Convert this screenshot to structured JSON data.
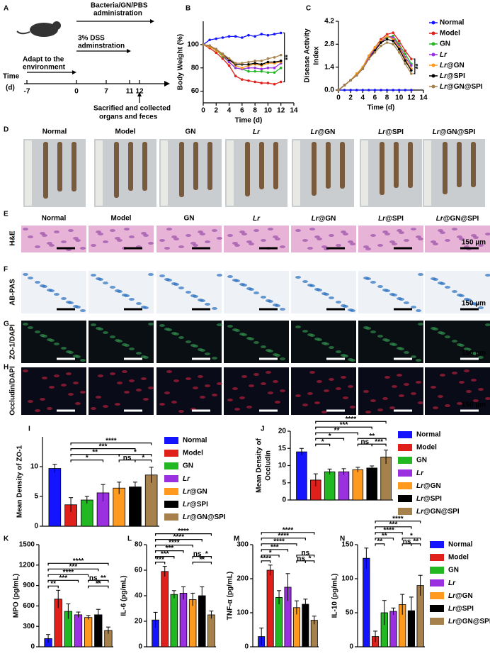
{
  "panel_labels": [
    "A",
    "B",
    "C",
    "D",
    "E",
    "F",
    "G",
    "H",
    "I",
    "J",
    "K",
    "L",
    "M",
    "N"
  ],
  "timeline": {
    "time": "Time",
    "unit": "(d)",
    "ticks": [
      "-7",
      "0",
      "7",
      "11",
      "12"
    ],
    "adapt": [
      "Adapt to the",
      "environment"
    ],
    "dss": [
      "3% DSS",
      "adminstration"
    ],
    "bacteria": [
      "Bacteria/GN/PBS",
      "administration"
    ],
    "sacrifice": [
      "Sacrified and collected",
      "organs and feces"
    ]
  },
  "histology": {
    "groups": [
      "Normal",
      "Model",
      "GN",
      "Lr",
      "Lr@GN",
      "Lr@SPI",
      "Lr@GN@SPI"
    ],
    "rows": [
      "H&E",
      "AB-PAS",
      "ZO-1/DAPI",
      "Occludin/DAPI"
    ],
    "scale_bar": "150 µm"
  },
  "chart_data": [
    {
      "type": "line",
      "xlabel": "Time (d)",
      "ylabel": [
        "Body Weight (%)"
      ],
      "annotation": "**",
      "x": [
        0,
        1,
        2,
        3,
        4,
        5,
        6,
        7,
        8,
        9,
        10,
        11,
        12
      ],
      "xlim": [
        0,
        14
      ],
      "xticks": [
        0,
        2,
        4,
        6,
        8,
        10,
        12,
        14
      ],
      "ylim": [
        50,
        120
      ],
      "yticks": [
        60,
        80,
        100
      ],
      "series": [
        {
          "name": "Normal",
          "color": "#1414ff",
          "values": [
            100,
            104,
            105,
            106,
            107,
            107,
            106,
            108,
            107,
            109,
            108,
            109,
            110
          ]
        },
        {
          "name": "Model",
          "color": "#e0201b",
          "values": [
            100,
            97,
            93,
            88,
            82,
            73,
            70,
            69,
            68,
            67,
            67,
            66,
            68
          ]
        },
        {
          "name": "GN",
          "color": "#22b822",
          "values": [
            100,
            98,
            95,
            90,
            85,
            80,
            79,
            77,
            77,
            77,
            76,
            76,
            80
          ]
        },
        {
          "name": "Lr",
          "color": "#9b30e0",
          "values": [
            100,
            99,
            96,
            91,
            85,
            80,
            79,
            80,
            80,
            79,
            80,
            80,
            84
          ]
        },
        {
          "name": "Lr@GN",
          "color": "#ff9a1f",
          "values": [
            100,
            98,
            95,
            91,
            87,
            82,
            80,
            82,
            83,
            82,
            84,
            84,
            85
          ]
        },
        {
          "name": "Lr@SPI",
          "color": "#000000",
          "values": [
            100,
            99,
            96,
            92,
            87,
            83,
            83,
            83,
            84,
            83,
            85,
            85,
            86
          ]
        },
        {
          "name": "Lr@GN@SPI",
          "color": "#a6814c",
          "values": [
            100,
            99,
            96,
            92,
            88,
            84,
            84,
            85,
            86,
            86,
            88,
            89,
            91
          ]
        }
      ]
    },
    {
      "type": "line",
      "xlabel": "Time (d)",
      "ylabel": [
        "Disease Activity",
        "Index"
      ],
      "annotation": "**",
      "legend": "right",
      "x": [
        0,
        1,
        2,
        3,
        4,
        5,
        6,
        7,
        8,
        9,
        10,
        11,
        12
      ],
      "xlim": [
        0,
        14
      ],
      "xticks": [
        0,
        2,
        4,
        6,
        8,
        10,
        12,
        14
      ],
      "ylim": [
        0,
        4.2
      ],
      "yticks": [
        {
          "value": 0,
          "label": "0.0"
        },
        1.4,
        2.8,
        4.2
      ],
      "series": [
        {
          "name": "Normal",
          "color": "#1414ff",
          "values": [
            0,
            0,
            0,
            0,
            0,
            0,
            0,
            0,
            0,
            0,
            0,
            0,
            0
          ]
        },
        {
          "name": "Model",
          "color": "#e0201b",
          "values": [
            0,
            0.3,
            0.6,
            1.0,
            1.4,
            2.1,
            2.6,
            3.1,
            3.4,
            3.5,
            3.0,
            2.4,
            1.9
          ]
        },
        {
          "name": "GN",
          "color": "#22b822",
          "values": [
            0,
            0.3,
            0.6,
            1.0,
            1.4,
            2.0,
            2.6,
            3.0,
            3.2,
            3.3,
            2.8,
            2.2,
            1.6
          ]
        },
        {
          "name": "Lr",
          "color": "#9b30e0",
          "values": [
            0,
            0.3,
            0.6,
            0.9,
            1.3,
            2.0,
            2.5,
            2.9,
            3.3,
            3.2,
            2.7,
            2.0,
            1.5
          ]
        },
        {
          "name": "Lr@GN",
          "color": "#ff9a1f",
          "values": [
            0,
            0.3,
            0.6,
            1.0,
            1.4,
            2.1,
            2.6,
            3.0,
            3.3,
            3.1,
            2.6,
            1.9,
            1.3
          ]
        },
        {
          "name": "Lr@SPI",
          "color": "#000000",
          "values": [
            0,
            0.3,
            0.6,
            0.9,
            1.3,
            1.9,
            2.4,
            2.9,
            3.1,
            3.0,
            2.5,
            1.8,
            1.2
          ]
        },
        {
          "name": "Lr@GN@SPI",
          "color": "#a6814c",
          "values": [
            0,
            0.3,
            0.6,
            0.9,
            1.3,
            1.9,
            2.3,
            2.7,
            2.9,
            2.8,
            2.3,
            1.6,
            1.0
          ]
        }
      ]
    },
    {
      "type": "bar",
      "ylabel": [
        "Mean Density of ZO-1"
      ],
      "legend": "right",
      "categories": [
        "Normal",
        "Model",
        "GN",
        "Lr",
        "Lr@GN",
        "Lr@SPI",
        "Lr@GN@SPI"
      ],
      "colors": [
        "#1414ff",
        "#e0201b",
        "#22b822",
        "#9b30e0",
        "#ff9a1f",
        "#000000",
        "#a6814c"
      ],
      "values": [
        9.7,
        3.6,
        4.4,
        5.6,
        6.4,
        6.6,
        8.6
      ],
      "errors": [
        0.7,
        1.2,
        0.6,
        1.4,
        1.0,
        0.8,
        1.3
      ],
      "ylim": [
        0,
        15
      ],
      "yticks": [
        0,
        5,
        10
      ],
      "brackets": [
        {
          "pair": [
            "Model",
            "Lr@GN@SPI"
          ],
          "label": "****"
        },
        {
          "pair": [
            "Model",
            "Lr@SPI"
          ],
          "label": "***"
        },
        {
          "pair": [
            "Lr@SPI",
            "Lr@GN@SPI"
          ],
          "label": "*"
        },
        {
          "pair": [
            "Model",
            "Lr@GN"
          ],
          "label": "**"
        },
        {
          "pair": [
            "Lr@GN",
            "Lr@GN@SPI"
          ],
          "label": "*"
        },
        {
          "pair": [
            "Lr@GN",
            "Lr@SPI"
          ],
          "label": "ns"
        },
        {
          "pair": [
            "Model",
            "Lr"
          ],
          "label": "*"
        }
      ]
    },
    {
      "type": "bar",
      "ylabel": [
        "Mean Density of",
        "Occludin"
      ],
      "legend": "right",
      "categories": [
        "Normal",
        "Model",
        "GN",
        "Lr",
        "Lr@GN",
        "Lr@SPI",
        "Lr@GN@SPI"
      ],
      "colors": [
        "#1414ff",
        "#e0201b",
        "#22b822",
        "#9b30e0",
        "#ff9a1f",
        "#000000",
        "#a6814c"
      ],
      "values": [
        14.0,
        5.8,
        8.2,
        8.2,
        8.8,
        9.3,
        12.5
      ],
      "errors": [
        1.0,
        1.8,
        0.8,
        0.9,
        0.7,
        0.6,
        2.0
      ],
      "ylim": [
        0,
        20
      ],
      "yticks": [
        0,
        5,
        10,
        15,
        20
      ],
      "brackets": [
        {
          "pair": [
            "Model",
            "Lr@GN@SPI"
          ],
          "label": "****"
        },
        {
          "pair": [
            "Model",
            "Lr@SPI"
          ],
          "label": "***"
        },
        {
          "pair": [
            "Lr@SPI",
            "Lr@GN@SPI"
          ],
          "label": "***"
        },
        {
          "pair": [
            "Model",
            "Lr@GN"
          ],
          "label": "**"
        },
        {
          "pair": [
            "Lr@GN",
            "Lr@GN@SPI"
          ],
          "label": "**"
        },
        {
          "pair": [
            "Lr@GN",
            "Lr@SPI"
          ],
          "label": "ns"
        },
        {
          "pair": [
            "Model",
            "Lr"
          ],
          "label": "*"
        },
        {
          "pair": [
            "Model",
            "GN"
          ],
          "label": "*"
        }
      ]
    },
    {
      "type": "bar",
      "ylabel": [
        "MPO (pg/mL)"
      ],
      "categories": [
        "Normal",
        "Model",
        "GN",
        "Lr",
        "Lr@GN",
        "Lr@SPI",
        "Lr@GN@SPI"
      ],
      "colors": [
        "#1414ff",
        "#e0201b",
        "#22b822",
        "#9b30e0",
        "#ff9a1f",
        "#000000",
        "#a6814c"
      ],
      "values": [
        120,
        700,
        520,
        470,
        430,
        470,
        240
      ],
      "errors": [
        60,
        130,
        110,
        40,
        30,
        80,
        50
      ],
      "ylim": [
        0,
        1500
      ],
      "yticks": [
        0,
        300,
        600,
        900,
        1200,
        1500
      ],
      "brackets": [
        {
          "pair": [
            "Normal",
            "Lr@GN@SPI"
          ],
          "label": "****"
        },
        {
          "pair": [
            "Normal",
            "Lr@SPI"
          ],
          "label": "***"
        },
        {
          "pair": [
            "Normal",
            "Lr@GN"
          ],
          "label": "****"
        },
        {
          "pair": [
            "Normal",
            "Lr"
          ],
          "label": "***"
        },
        {
          "pair": [
            "Lr@GN",
            "Lr@SPI"
          ],
          "label": "ns"
        },
        {
          "pair": [
            "Lr@SPI",
            "Lr@GN@SPI"
          ],
          "label": "**"
        },
        {
          "pair": [
            "Normal",
            "Model"
          ],
          "label": "**"
        },
        {
          "pair": [
            "Lr@GN",
            "Lr@GN@SPI"
          ],
          "label": "**"
        }
      ]
    },
    {
      "type": "bar",
      "ylabel": [
        "IL-6 (pg/mL)"
      ],
      "categories": [
        "Normal",
        "Model",
        "GN",
        "Lr",
        "Lr@GN",
        "Lr@SPI",
        "Lr@GN@SPI"
      ],
      "colors": [
        "#1414ff",
        "#e0201b",
        "#22b822",
        "#9b30e0",
        "#ff9a1f",
        "#000000",
        "#a6814c"
      ],
      "values": [
        21,
        59,
        41,
        42,
        37,
        40,
        25
      ],
      "errors": [
        6,
        4,
        3,
        5,
        5,
        7,
        3
      ],
      "ylim": [
        0,
        80
      ],
      "yticks": [
        0,
        20,
        40,
        60,
        80
      ],
      "brackets": [
        {
          "pair": [
            "Normal",
            "Lr@GN@SPI"
          ],
          "label": "****"
        },
        {
          "pair": [
            "Normal",
            "Lr@SPI"
          ],
          "label": "****"
        },
        {
          "pair": [
            "Normal",
            "Lr@GN"
          ],
          "label": "****"
        },
        {
          "pair": [
            "Normal",
            "Lr"
          ],
          "label": "***"
        },
        {
          "pair": [
            "Normal",
            "GN"
          ],
          "label": "***"
        },
        {
          "pair": [
            "Lr@GN",
            "Lr@SPI"
          ],
          "label": "ns"
        },
        {
          "pair": [
            "Lr@SPI",
            "Lr@GN@SPI"
          ],
          "label": "*"
        },
        {
          "pair": [
            "Lr@GN",
            "Lr@GN@SPI"
          ],
          "label": "**"
        },
        {
          "pair": [
            "Normal",
            "Model"
          ],
          "label": "***"
        }
      ]
    },
    {
      "type": "bar",
      "ylabel": [
        "TNF-α (pg/mL)"
      ],
      "categories": [
        "Normal",
        "Model",
        "GN",
        "Lr",
        "Lr@GN",
        "Lr@SPI",
        "Lr@GN@SPI"
      ],
      "colors": [
        "#1414ff",
        "#e0201b",
        "#22b822",
        "#9b30e0",
        "#ff9a1f",
        "#000000",
        "#a6814c"
      ],
      "values": [
        30,
        225,
        145,
        175,
        115,
        125,
        78
      ],
      "errors": [
        25,
        15,
        20,
        40,
        20,
        15,
        12
      ],
      "ylim": [
        0,
        300
      ],
      "yticks": [
        0,
        100,
        200,
        300
      ],
      "brackets": [
        {
          "pair": [
            "Normal",
            "Lr@GN@SPI"
          ],
          "label": "****"
        },
        {
          "pair": [
            "Normal",
            "Lr@SPI"
          ],
          "label": "****"
        },
        {
          "pair": [
            "Normal",
            "Lr@GN"
          ],
          "label": "****"
        },
        {
          "pair": [
            "Normal",
            "Lr"
          ],
          "label": "***"
        },
        {
          "pair": [
            "Normal",
            "GN"
          ],
          "label": "*"
        },
        {
          "pair": [
            "Normal",
            "Model"
          ],
          "label": "****"
        },
        {
          "pair": [
            "Lr@GN",
            "Lr@SPI"
          ],
          "label": "ns"
        },
        {
          "pair": [
            "Lr@GN",
            "Lr@GN@SPI"
          ],
          "label": "ns"
        },
        {
          "pair": [
            "Lr@SPI",
            "Lr@GN@SPI"
          ],
          "label": "*"
        }
      ]
    },
    {
      "type": "bar",
      "ylabel": [
        "IL-10 (pg/mL)"
      ],
      "legend": "right",
      "categories": [
        "Normal",
        "Model",
        "GN",
        "Lr",
        "Lr@GN",
        "Lr@SPI",
        "Lr@GN@SPI"
      ],
      "colors": [
        "#1414ff",
        "#e0201b",
        "#22b822",
        "#9b30e0",
        "#ff9a1f",
        "#000000",
        "#a6814c"
      ],
      "values": [
        130,
        15,
        50,
        52,
        62,
        53,
        90
      ],
      "errors": [
        15,
        8,
        18,
        5,
        15,
        20,
        15
      ],
      "ylim": [
        0,
        150
      ],
      "yticks": [
        0,
        50,
        100,
        150
      ],
      "brackets": [
        {
          "pair": [
            "Model",
            "Lr@GN@SPI"
          ],
          "label": "****"
        },
        {
          "pair": [
            "Model",
            "Lr@SPI"
          ],
          "label": "***"
        },
        {
          "pair": [
            "Lr@SPI",
            "Lr@GN@SPI"
          ],
          "label": "**"
        },
        {
          "pair": [
            "Model",
            "Lr@GN"
          ],
          "label": "****"
        },
        {
          "pair": [
            "Lr@GN",
            "Lr@GN@SPI"
          ],
          "label": "*"
        },
        {
          "pair": [
            "Model",
            "Lr"
          ],
          "label": "**"
        },
        {
          "pair": [
            "Lr@GN",
            "Lr@SPI"
          ],
          "label": "ns"
        },
        {
          "pair": [
            "Model",
            "GN"
          ],
          "label": "**"
        }
      ]
    }
  ]
}
